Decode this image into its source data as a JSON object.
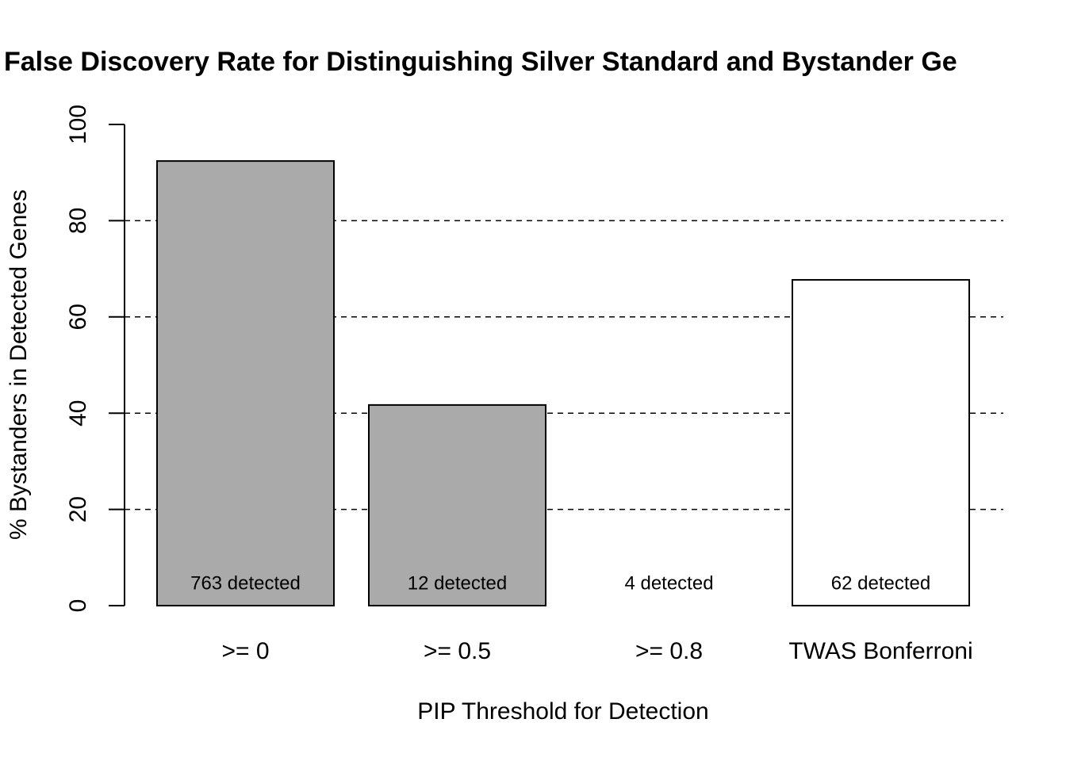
{
  "chart_data": {
    "type": "bar",
    "title": "False Discovery Rate for Distinguishing Silver Standard and Bystander Ge",
    "x_label": "PIP Threshold for Detection",
    "y_label": "% Bystanders in Detected Genes",
    "categories": [
      ">= 0",
      ">= 0.5",
      ">= 0.8",
      "TWAS Bonferroni"
    ],
    "values": [
      92.4,
      41.7,
      0,
      67.7
    ],
    "colors": [
      "#aaaaaa",
      "#aaaaaa",
      "#ffffff",
      "#ffffff"
    ],
    "bar_labels": [
      "763 detected",
      "12 detected",
      "4 detected",
      "62 detected"
    ],
    "ylim": [
      0,
      100
    ],
    "yticks": [
      0,
      20,
      40,
      60,
      80,
      100
    ],
    "grid": true
  }
}
